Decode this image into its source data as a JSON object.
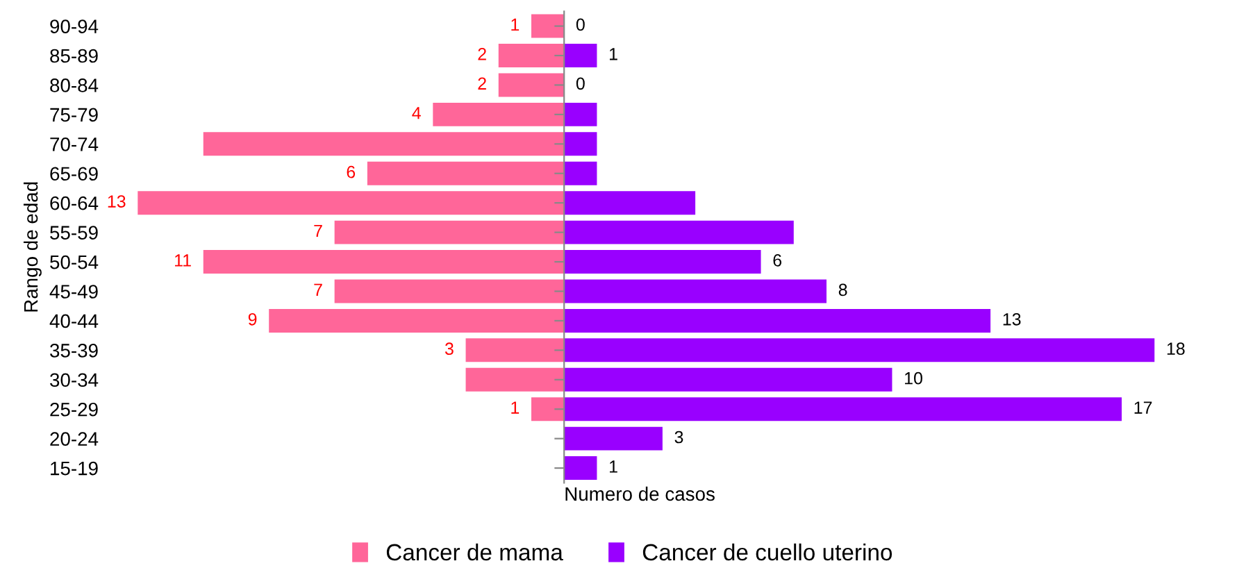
{
  "chart_data": [
    {
      "type": "bar",
      "orientation": "horizontal",
      "ylabel": "Rango de edad",
      "legend": "bottom",
      "tick_labels": "y",
      "categories": [
        "90-94",
        "85-89",
        "80-84",
        "75-79",
        "70-74",
        "65-69",
        "60-64",
        "55-59",
        "50-54",
        "45-49",
        "40-44",
        "35-39",
        "30-34",
        "25-29",
        "20-24",
        "15-19"
      ],
      "series": [
        {
          "name": "Cancer de mama",
          "color": "#ff6699",
          "values": [
            1,
            2,
            2,
            4,
            11,
            6,
            13,
            7,
            11,
            7,
            9,
            3,
            3,
            1,
            0,
            0
          ],
          "value_labels": [
            "1",
            "2",
            "2",
            "4",
            null,
            "6",
            "13",
            "7",
            "11",
            "7",
            "9",
            "3",
            null,
            "1",
            null,
            null
          ]
        }
      ]
    },
    {
      "type": "bar",
      "orientation": "horizontal",
      "xlabel": "Numero de casos",
      "legend": "bottom",
      "tick_labels": false,
      "series": [
        {
          "name": "Cancer de cuello uterino",
          "color": "#9900ff",
          "values": [
            0,
            1,
            0,
            1,
            1,
            1,
            4,
            7,
            6,
            8,
            13,
            18,
            10,
            17,
            3,
            1
          ],
          "value_labels": [
            "0",
            "1",
            "0",
            null,
            null,
            null,
            null,
            null,
            "6",
            "8",
            "13",
            "18",
            "10",
            "17",
            "3",
            "1"
          ]
        }
      ]
    }
  ]
}
